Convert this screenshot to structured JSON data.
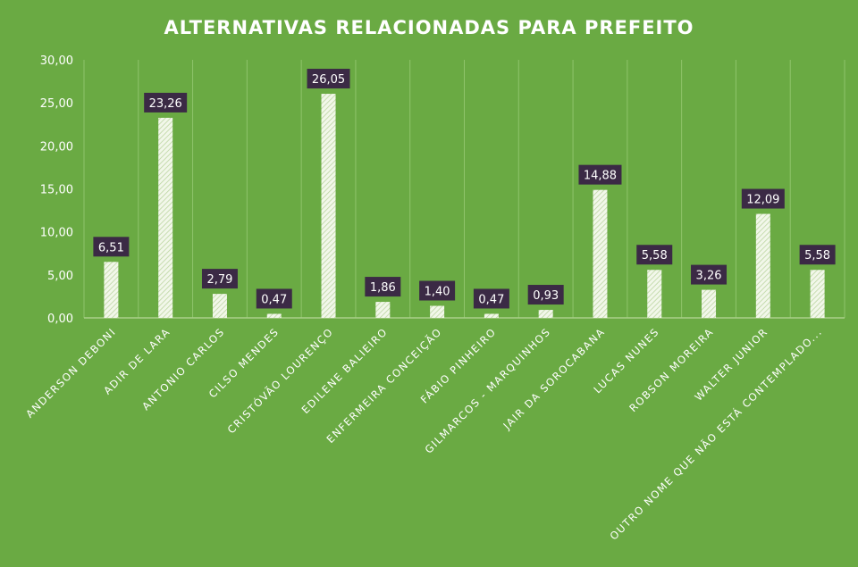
{
  "chart_data": {
    "type": "bar",
    "title": "ALTERNATIVAS RELACIONADAS PARA PREFEITO",
    "xlabel": "",
    "ylabel": "",
    "ylim": [
      0,
      30
    ],
    "yticks": [
      "0,00",
      "5,00",
      "10,00",
      "15,00",
      "20,00",
      "25,00",
      "30,00"
    ],
    "grid": "vertical",
    "legend": "none",
    "categories": [
      "ANDERSON DEBONI",
      "ADIR DE LARA",
      "ANTONIO CARLOS",
      "CILSO MENDES",
      "CRISTÓVÃO LOURENÇO",
      "EDILENE BALIEIRO",
      "ENFERMEIRA CONCEIÇÃO",
      "FÁBIO PINHEIRO",
      "GILMARCOS - MARQUINHOS",
      "JAIR DA SOROCABANA",
      "LUCAS NUNES",
      "ROBSON MOREIRA",
      "WALTER JUNIOR",
      "OUTRO NOME QUE NÃO ESTÁ CONTEMPLADO..."
    ],
    "values": [
      6.51,
      23.26,
      2.79,
      0.47,
      26.05,
      1.86,
      1.4,
      0.47,
      0.93,
      14.88,
      5.58,
      3.26,
      12.09,
      5.58
    ],
    "data_labels": [
      "6,51",
      "23,26",
      "2,79",
      "0,47",
      "26,05",
      "1,86",
      "1,40",
      "0,47",
      "0,93",
      "14,88",
      "5,58",
      "3,26",
      "12,09",
      "5,58"
    ],
    "colors": {
      "background": "#6aaa43",
      "bar": "#e8f2dc",
      "label_box": "#3b2a45",
      "text": "#ffffff"
    }
  }
}
